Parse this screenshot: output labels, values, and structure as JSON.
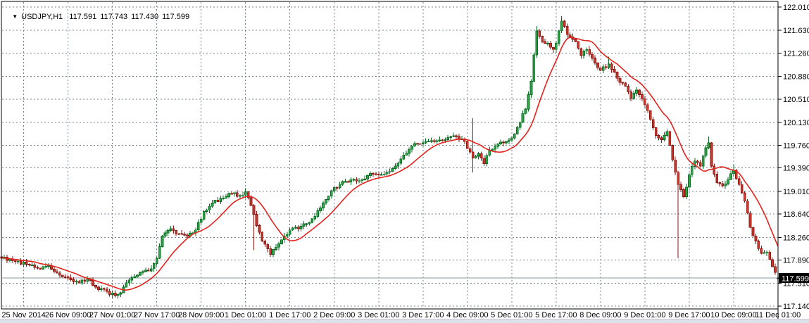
{
  "title": {
    "indicator_arrow": "▼",
    "symbol": "USDJPY,H1",
    "open": "117.591",
    "high": "117.743",
    "low": "117.430",
    "close": "117.599"
  },
  "chart_data": {
    "type": "candlestick",
    "symbol": "USDJPY",
    "timeframe": "H1",
    "title": "USDJPY,H1 117.591 117.743 117.430 117.599",
    "current_bar": {
      "open": 117.591,
      "high": 117.743,
      "low": 117.43,
      "close": 117.599
    },
    "bid": 117.599,
    "bid_label": "117.599",
    "ylim": [
      117.106,
      122.09
    ],
    "grid": true,
    "legend": "none",
    "y_ticks": [
      "122.010",
      "121.630",
      "121.260",
      "120.880",
      "120.510",
      "120.130",
      "119.760",
      "119.390",
      "119.010",
      "118.640",
      "118.260",
      "117.890",
      "117.510",
      "117.140"
    ],
    "x_ticks": [
      "25 Nov 2014",
      "26 Nov 09:00",
      "27 Nov 01:00",
      "27 Nov 17:00",
      "28 Nov 09:00",
      "1 Dec 01:00",
      "1 Dec 17:00",
      "2 Dec 09:00",
      "3 Dec 01:00",
      "3 Dec 17:00",
      "4 Dec 09:00",
      "5 Dec 01:00",
      "5 Dec 17:00",
      "8 Dec 09:00",
      "9 Dec 01:00",
      "9 Dec 17:00",
      "10 Dec 09:00",
      "11 Dec 01:00"
    ],
    "total_bars": 281,
    "price_path_anchors": [
      [
        0,
        117.92
      ],
      [
        4,
        117.88
      ],
      [
        9,
        117.82
      ],
      [
        13,
        117.76
      ],
      [
        17,
        117.8
      ],
      [
        20,
        117.68
      ],
      [
        24,
        117.6
      ],
      [
        28,
        117.52
      ],
      [
        31,
        117.58
      ],
      [
        34,
        117.45
      ],
      [
        38,
        117.38
      ],
      [
        41,
        117.31
      ],
      [
        43,
        117.36
      ],
      [
        45,
        117.52
      ],
      [
        48,
        117.62
      ],
      [
        51,
        117.7
      ],
      [
        54,
        117.75
      ],
      [
        56,
        117.92
      ],
      [
        58,
        118.28
      ],
      [
        61,
        118.4
      ],
      [
        64,
        118.32
      ],
      [
        67,
        118.28
      ],
      [
        70,
        118.38
      ],
      [
        73,
        118.68
      ],
      [
        76,
        118.82
      ],
      [
        80,
        118.9
      ],
      [
        83,
        118.97
      ],
      [
        86,
        118.94
      ],
      [
        88,
        119.0
      ],
      [
        90,
        118.78
      ],
      [
        92,
        118.45
      ],
      [
        94,
        118.2
      ],
      [
        97,
        117.98
      ],
      [
        99,
        118.1
      ],
      [
        101,
        118.22
      ],
      [
        104,
        118.38
      ],
      [
        108,
        118.44
      ],
      [
        112,
        118.56
      ],
      [
        116,
        118.82
      ],
      [
        119,
        119.02
      ],
      [
        122,
        119.12
      ],
      [
        126,
        119.2
      ],
      [
        130,
        119.2
      ],
      [
        133,
        119.3
      ],
      [
        136,
        119.28
      ],
      [
        139,
        119.32
      ],
      [
        142,
        119.42
      ],
      [
        145,
        119.6
      ],
      [
        148,
        119.75
      ],
      [
        152,
        119.8
      ],
      [
        156,
        119.82
      ],
      [
        160,
        119.85
      ],
      [
        164,
        119.9
      ],
      [
        167,
        119.82
      ],
      [
        170,
        119.55
      ],
      [
        172,
        119.62
      ],
      [
        174,
        119.46
      ],
      [
        176,
        119.68
      ],
      [
        179,
        119.78
      ],
      [
        182,
        119.82
      ],
      [
        184,
        119.88
      ],
      [
        186,
        120.05
      ],
      [
        189,
        120.35
      ],
      [
        191,
        120.8
      ],
      [
        193,
        121.62
      ],
      [
        195,
        121.45
      ],
      [
        197,
        121.42
      ],
      [
        199,
        121.32
      ],
      [
        200,
        121.42
      ],
      [
        202,
        121.78
      ],
      [
        204,
        121.56
      ],
      [
        207,
        121.45
      ],
      [
        209,
        121.22
      ],
      [
        211,
        121.32
      ],
      [
        213,
        121.18
      ],
      [
        216,
        120.98
      ],
      [
        219,
        121.08
      ],
      [
        222,
        120.85
      ],
      [
        225,
        120.72
      ],
      [
        227,
        120.52
      ],
      [
        229,
        120.66
      ],
      [
        232,
        120.42
      ],
      [
        234,
        120.18
      ],
      [
        236,
        119.92
      ],
      [
        238,
        119.85
      ],
      [
        240,
        119.98
      ],
      [
        242,
        119.52
      ],
      [
        244,
        119.12
      ],
      [
        246,
        118.92
      ],
      [
        248,
        119.28
      ],
      [
        250,
        119.5
      ],
      [
        252,
        119.42
      ],
      [
        254,
        119.72
      ],
      [
        255,
        119.8
      ],
      [
        256,
        119.42
      ],
      [
        258,
        119.15
      ],
      [
        260,
        119.1
      ],
      [
        262,
        119.2
      ],
      [
        264,
        119.35
      ],
      [
        266,
        119.12
      ],
      [
        268,
        118.85
      ],
      [
        270,
        118.42
      ],
      [
        272,
        118.2
      ],
      [
        274,
        118.0
      ],
      [
        276,
        118.02
      ],
      [
        278,
        117.78
      ],
      [
        280,
        117.599
      ]
    ],
    "wick_spikes": [
      {
        "i": 41,
        "low": 117.28
      },
      {
        "i": 88,
        "high": 119.06
      },
      {
        "i": 91,
        "low": 118.05
      },
      {
        "i": 170,
        "high": 120.2,
        "low": 119.32
      },
      {
        "i": 193,
        "high": 121.7
      },
      {
        "i": 202,
        "high": 121.86
      },
      {
        "i": 219,
        "high": 121.2
      },
      {
        "i": 244,
        "low": 117.92
      },
      {
        "i": 255,
        "high": 119.9
      },
      {
        "i": 264,
        "high": 119.45
      }
    ],
    "moving_average": {
      "kind": "SMA",
      "period": 13
    },
    "colors": {
      "background": "#ffffff",
      "grid": "#76838f",
      "border": "#000000",
      "bull_fill": "#2fa84a",
      "bull_border": "#0b6e23",
      "bear_fill": "#cb3a31",
      "bear_border": "#8c1a13",
      "ma_line": "#e3231c",
      "bid_line": "#8f989f",
      "badge_bg": "#000000",
      "badge_text": "#ffffff",
      "axis_text": "#000000"
    }
  }
}
